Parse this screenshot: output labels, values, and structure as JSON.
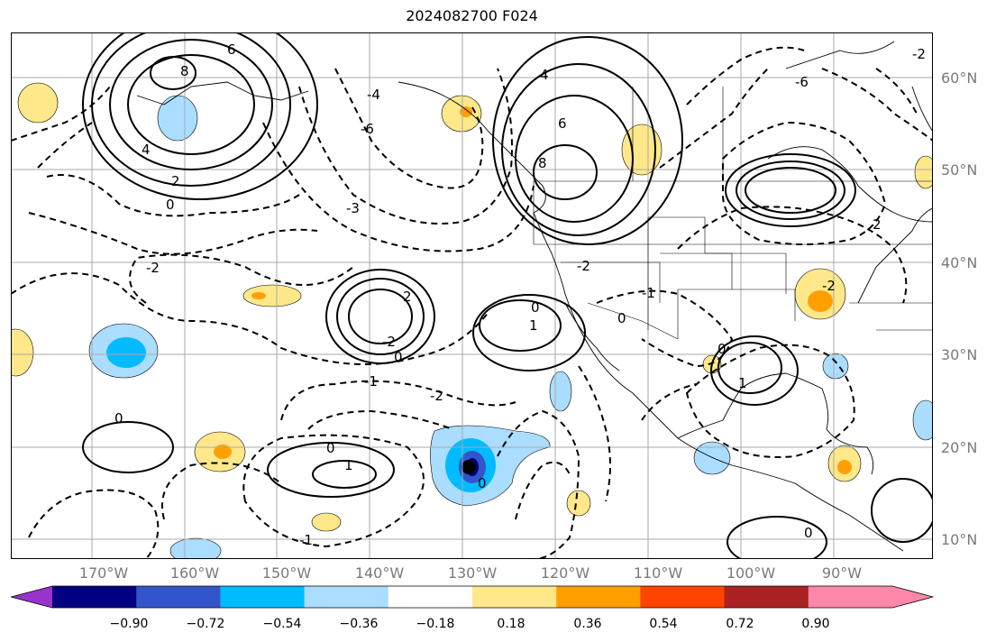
{
  "title": "2024082700 F024",
  "lat_labels": [
    "60°N",
    "50°N",
    "40°N",
    "30°N",
    "20°N",
    "10°N"
  ],
  "lon_labels": [
    "170°W",
    "160°W",
    "150°W",
    "140°W",
    "130°W",
    "120°W",
    "110°W",
    "100°W",
    "90°W"
  ],
  "colorbar": {
    "colors": [
      "#9933cc",
      "#000080",
      "#3355cc",
      "#00bbff",
      "#aaddff",
      "#ffffff",
      "#ffe88a",
      "#ffa000",
      "#ff4400",
      "#aa2222",
      "#ff88aa"
    ],
    "labels": [
      "−0.90",
      "−0.72",
      "−0.54",
      "−0.36",
      "−0.18",
      "0.18",
      "0.36",
      "0.54",
      "0.72",
      "0.90"
    ]
  },
  "contour_labels": [
    "8",
    "6",
    "4",
    "2",
    "0",
    "-2",
    "-3",
    "-4",
    "-6",
    "2",
    "-2",
    "0",
    "1",
    "0",
    "-1",
    "-2",
    "0",
    "1",
    "0",
    "-1",
    "0",
    "1",
    "8",
    "6",
    "4",
    "-2",
    "-1",
    "0",
    "0",
    "-2",
    "2",
    "0",
    "-2",
    "-6"
  ]
}
